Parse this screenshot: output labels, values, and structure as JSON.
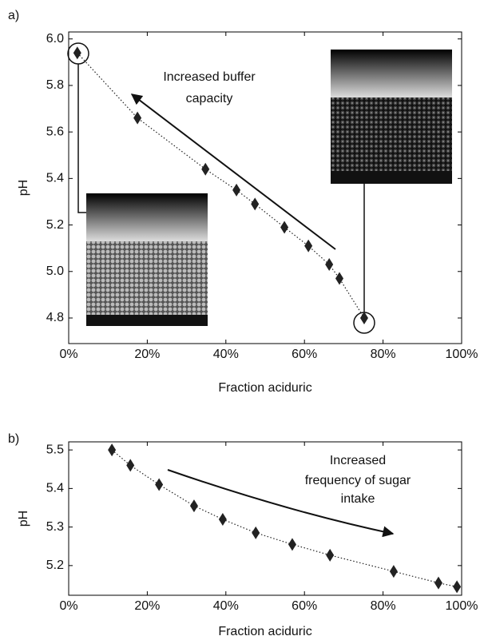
{
  "chart_data": [
    {
      "type": "line",
      "panel_label": "a)",
      "x_label": "Fraction aciduric",
      "y_label": "pH",
      "annotation": [
        "Increased buffer",
        "capacity"
      ],
      "x": [
        2.2,
        17.5,
        34.8,
        42.7,
        47.4,
        54.9,
        61,
        66.3,
        68.9,
        75.2
      ],
      "values": [
        5.94,
        5.66,
        5.44,
        5.35,
        5.29,
        5.19,
        5.11,
        5.03,
        4.97,
        4.8
      ],
      "xlim": [
        0,
        100
      ],
      "ylim": [
        4.69,
        6.03
      ],
      "xticks": [
        {
          "value": 0,
          "label": "0%"
        },
        {
          "value": 20,
          "label": "20%"
        },
        {
          "value": 40,
          "label": "40%"
        },
        {
          "value": 60,
          "label": "60%"
        },
        {
          "value": 80,
          "label": "80%"
        },
        {
          "value": 100,
          "label": "100%"
        }
      ],
      "yticks": [
        {
          "value": 4.8,
          "label": "4.8"
        },
        {
          "value": 5,
          "label": "5.0"
        },
        {
          "value": 5.2,
          "label": "5.2"
        },
        {
          "value": 5.4,
          "label": "5.4"
        },
        {
          "value": 5.6,
          "label": "5.6"
        },
        {
          "value": 5.8,
          "label": "5.8"
        },
        {
          "value": 6,
          "label": "6.0"
        }
      ],
      "color": "#222"
    },
    {
      "type": "line",
      "panel_label": "b)",
      "x_label": "Fraction aciduric",
      "y_label": "pH",
      "annotation": [
        "Increased",
        "frequency of sugar",
        "intake"
      ],
      "x": [
        11,
        15.7,
        23,
        31.9,
        39.2,
        47.6,
        56.9,
        66.5,
        82.7,
        94.1,
        98.8
      ],
      "values": [
        5.5,
        5.46,
        5.41,
        5.355,
        5.32,
        5.285,
        5.255,
        5.227,
        5.185,
        5.155,
        5.145
      ],
      "xlim": [
        0,
        100
      ],
      "ylim": [
        5.123,
        5.521
      ],
      "xticks": [
        {
          "value": 0,
          "label": "0%"
        },
        {
          "value": 20,
          "label": "20%"
        },
        {
          "value": 40,
          "label": "40%"
        },
        {
          "value": 60,
          "label": "60%"
        },
        {
          "value": 80,
          "label": "80%"
        },
        {
          "value": 100,
          "label": "100%"
        }
      ],
      "yticks": [
        5.2,
        5.3,
        5.4,
        5.5
      ],
      "color": "#222"
    }
  ]
}
